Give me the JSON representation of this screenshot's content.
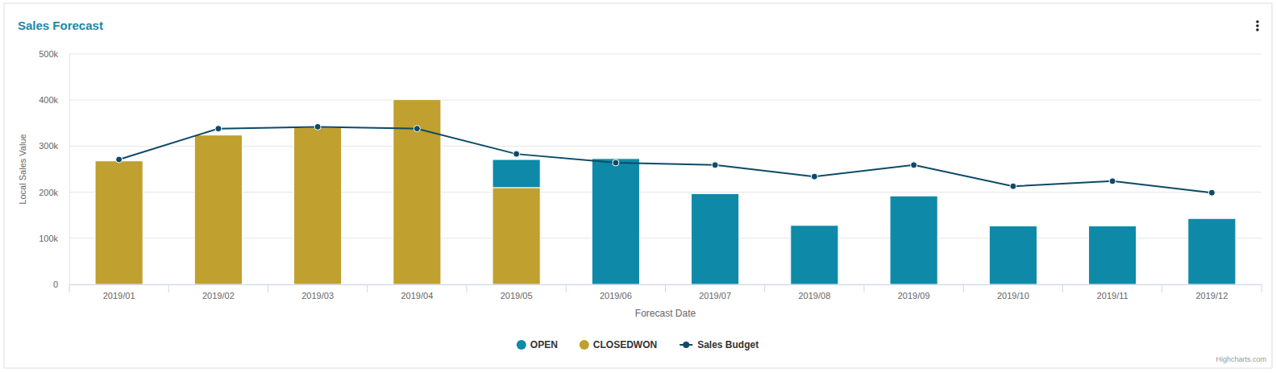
{
  "chart_data": {
    "type": "bar",
    "title": "Sales Forecast",
    "x_label": "Forecast Date",
    "y_label": "Local Sales Value",
    "credits": "Highcharts.com",
    "categories": [
      "2019/01",
      "2019/02",
      "2019/03",
      "2019/04",
      "2019/05",
      "2019/06",
      "2019/07",
      "2019/08",
      "2019/09",
      "2019/10",
      "2019/11",
      "2019/12"
    ],
    "stacked": true,
    "grid": true,
    "legend": "bottom",
    "ylim": [
      0,
      500000
    ],
    "yticks": [
      0,
      {
        "value": 100000,
        "label": "100k"
      },
      {
        "value": 200000,
        "label": "200k"
      },
      {
        "value": 300000,
        "label": "300k"
      },
      {
        "value": 400000,
        "label": "400k"
      },
      {
        "value": 500000,
        "label": "500k"
      }
    ],
    "series": [
      {
        "name": "OPEN",
        "type": "bar",
        "color": "#0e8aa8",
        "values": [
          0,
          0,
          0,
          0,
          61000,
          273000,
          197000,
          128000,
          192000,
          127000,
          127000,
          143000
        ]
      },
      {
        "name": "CLOSEDWON",
        "type": "bar",
        "color": "#c0a02e",
        "values": [
          268000,
          324000,
          340000,
          401000,
          210000,
          0,
          0,
          0,
          0,
          0,
          0,
          0
        ]
      },
      {
        "name": "Sales Budget",
        "type": "line",
        "color": "#0d4a68",
        "marker": "circle",
        "values": [
          271000,
          338000,
          342000,
          338000,
          283000,
          264000,
          259000,
          234000,
          259000,
          213000,
          224000,
          199000
        ]
      }
    ]
  }
}
